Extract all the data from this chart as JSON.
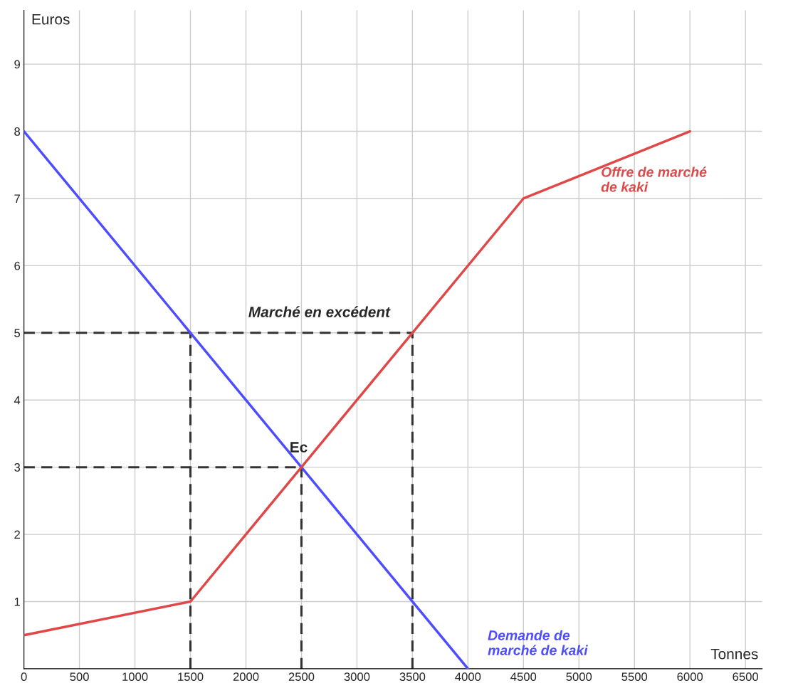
{
  "chart_data": {
    "type": "line",
    "xlabel": "Tonnes",
    "ylabel": "Euros",
    "xlim": [
      0,
      6650
    ],
    "ylim": [
      0,
      9.8
    ],
    "xticks": [
      0,
      500,
      1000,
      1500,
      2000,
      2500,
      3000,
      3500,
      4000,
      4500,
      5000,
      5500,
      6000,
      6500
    ],
    "yticks": [
      1,
      2,
      3,
      4,
      5,
      6,
      7,
      8,
      9
    ],
    "grid": true,
    "legend": false,
    "series": [
      {
        "name": "Demande de\nmarché de kaki",
        "color": "#4d4dff",
        "x": [
          0,
          4000
        ],
        "values": [
          8,
          0
        ]
      },
      {
        "name": "Offre de marché\nde kaki",
        "color": "#e04848",
        "x": [
          0,
          1500,
          4500,
          6000
        ],
        "values": [
          0.5,
          1,
          7,
          8
        ]
      },
      {
        "color": "#333333",
        "line_style": "dashed",
        "x": [
          0,
          3500
        ],
        "values": [
          5,
          5
        ]
      },
      {
        "color": "#333333",
        "line_style": "dashed",
        "x": [
          0,
          2500
        ],
        "values": [
          3,
          3
        ]
      },
      {
        "color": "#333333",
        "line_style": "dashed",
        "x": [
          1500,
          1500
        ],
        "values": [
          0,
          5
        ]
      },
      {
        "color": "#333333",
        "line_style": "dashed",
        "x": [
          2500,
          2500
        ],
        "values": [
          0,
          3
        ]
      },
      {
        "color": "#333333",
        "line_style": "dashed",
        "x": [
          3500,
          3500
        ],
        "values": [
          0,
          5
        ]
      }
    ],
    "annotations": [
      "Marché en excédent",
      {
        "text": "Ec",
        "x": 2500,
        "y": 3
      }
    ]
  }
}
